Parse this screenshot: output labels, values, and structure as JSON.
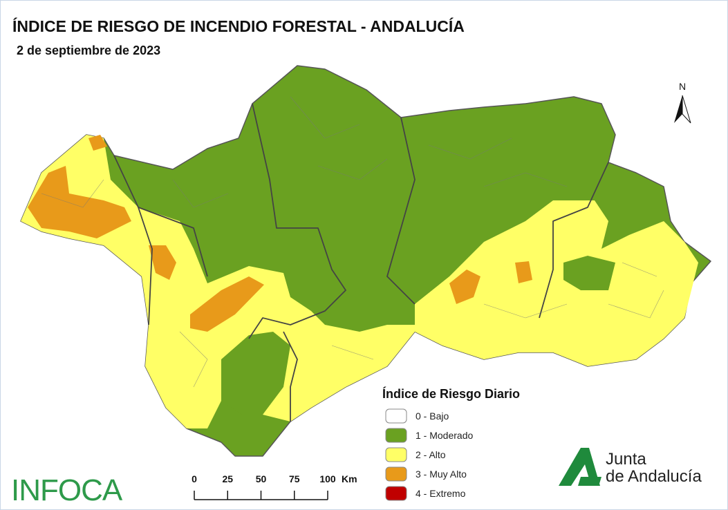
{
  "header": {
    "title": "ÍNDICE DE RIESGO DE INCENDIO FORESTAL - ANDALUCÍA",
    "date": "2 de septiembre de 2023"
  },
  "north_arrow": "N",
  "legend": {
    "title": "Índice de Riesgo Diario",
    "items": [
      {
        "label": "0 - Bajo",
        "color": "#ffffff"
      },
      {
        "label": "1 - Moderado",
        "color": "#6aa121"
      },
      {
        "label": "2 - Alto",
        "color": "#ffff66"
      },
      {
        "label": "3 - Muy Alto",
        "color": "#e89a1a"
      },
      {
        "label": "4 - Extremo",
        "color": "#c00000"
      }
    ]
  },
  "scale_bar": {
    "ticks": [
      0,
      25,
      50,
      75,
      100
    ],
    "unit": "Km"
  },
  "brand": "INFOCA",
  "logo": {
    "line1": "Junta",
    "line2": "de Andalucía"
  }
}
